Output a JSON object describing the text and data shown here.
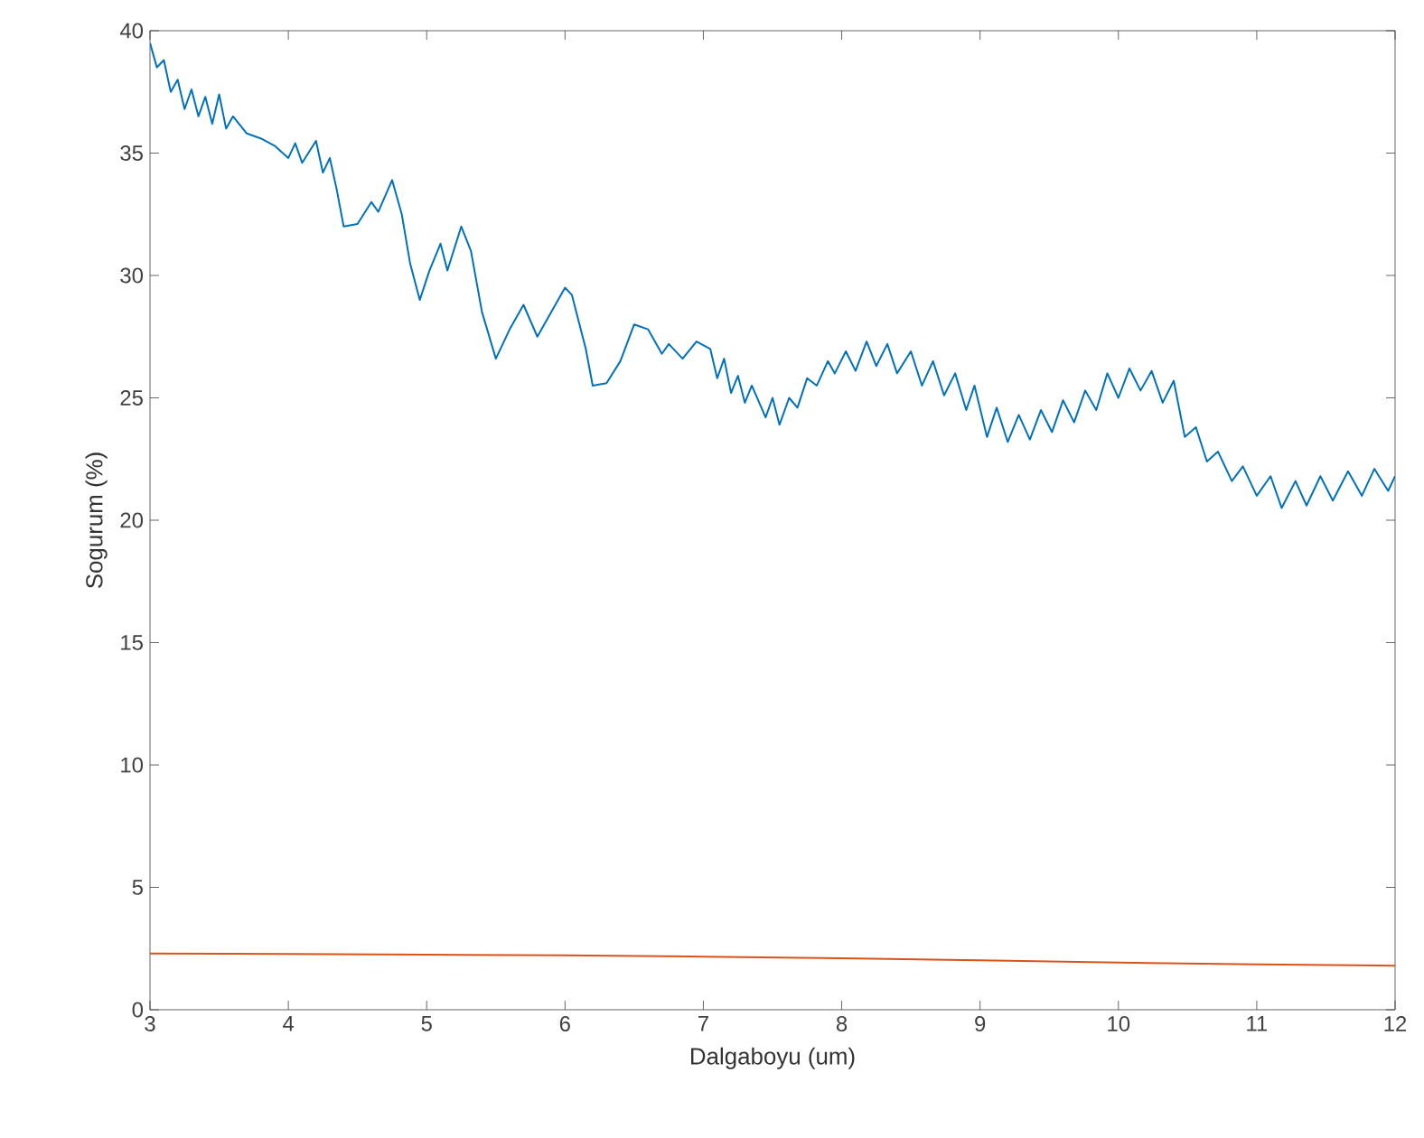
{
  "chart_data": {
    "type": "line",
    "xlabel": "Dalgaboyu (um)",
    "ylabel": "Sogurum (%)",
    "xlim": [
      3,
      12
    ],
    "ylim": [
      0,
      40
    ],
    "xticks": [
      3,
      4,
      5,
      6,
      7,
      8,
      9,
      10,
      11,
      12
    ],
    "yticks": [
      0,
      5,
      10,
      15,
      20,
      25,
      30,
      35,
      40
    ],
    "series": [
      {
        "color": "#0072bd",
        "x": [
          3.0,
          3.05,
          3.1,
          3.15,
          3.2,
          3.25,
          3.3,
          3.35,
          3.4,
          3.45,
          3.5,
          3.55,
          3.6,
          3.7,
          3.8,
          3.9,
          4.0,
          4.05,
          4.1,
          4.2,
          4.25,
          4.3,
          4.35,
          4.4,
          4.5,
          4.6,
          4.65,
          4.75,
          4.82,
          4.88,
          4.95,
          5.02,
          5.1,
          5.15,
          5.25,
          5.32,
          5.4,
          5.5,
          5.6,
          5.7,
          5.8,
          5.9,
          6.0,
          6.05,
          6.15,
          6.2,
          6.3,
          6.4,
          6.5,
          6.6,
          6.7,
          6.75,
          6.85,
          6.95,
          7.05,
          7.1,
          7.15,
          7.2,
          7.25,
          7.3,
          7.35,
          7.45,
          7.5,
          7.55,
          7.62,
          7.68,
          7.75,
          7.82,
          7.9,
          7.95,
          8.03,
          8.1,
          8.18,
          8.25,
          8.33,
          8.4,
          8.5,
          8.58,
          8.66,
          8.74,
          8.82,
          8.9,
          8.96,
          9.05,
          9.12,
          9.2,
          9.28,
          9.36,
          9.44,
          9.52,
          9.6,
          9.68,
          9.76,
          9.84,
          9.92,
          10.0,
          10.08,
          10.16,
          10.24,
          10.32,
          10.4,
          10.48,
          10.56,
          10.64,
          10.72,
          10.82,
          10.9,
          11.0,
          11.1,
          11.18,
          11.28,
          11.36,
          11.46,
          11.55,
          11.66,
          11.76,
          11.85,
          11.95,
          12.0
        ],
        "values": [
          39.5,
          38.5,
          38.8,
          37.5,
          38.0,
          36.8,
          37.6,
          36.5,
          37.3,
          36.2,
          37.4,
          36.0,
          36.5,
          35.8,
          35.6,
          35.3,
          34.8,
          35.4,
          34.6,
          35.5,
          34.2,
          34.8,
          33.5,
          32.0,
          32.1,
          33.0,
          32.6,
          33.9,
          32.5,
          30.5,
          29.0,
          30.2,
          31.3,
          30.2,
          32.0,
          31.0,
          28.5,
          26.6,
          27.8,
          28.8,
          27.5,
          28.5,
          29.5,
          29.2,
          27.0,
          25.5,
          25.6,
          26.5,
          28.0,
          27.8,
          26.8,
          27.2,
          26.6,
          27.3,
          27.0,
          25.8,
          26.6,
          25.2,
          25.9,
          24.8,
          25.5,
          24.2,
          25.0,
          23.9,
          25.0,
          24.6,
          25.8,
          25.5,
          26.5,
          26.0,
          26.9,
          26.1,
          27.3,
          26.3,
          27.2,
          26.0,
          26.9,
          25.5,
          26.5,
          25.1,
          26.0,
          24.5,
          25.5,
          23.4,
          24.6,
          23.2,
          24.3,
          23.3,
          24.5,
          23.6,
          24.9,
          24.0,
          25.3,
          24.5,
          26.0,
          25.0,
          26.2,
          25.3,
          26.1,
          24.8,
          25.7,
          23.4,
          23.8,
          22.4,
          22.8,
          21.6,
          22.2,
          21.0,
          21.8,
          20.5,
          21.6,
          20.6,
          21.8,
          20.8,
          22.0,
          21.0,
          22.1,
          21.2,
          21.8
        ]
      },
      {
        "color": "#d95319",
        "x": [
          3,
          4,
          5,
          6,
          7,
          8,
          9,
          10,
          11,
          12
        ],
        "values": [
          2.3,
          2.28,
          2.25,
          2.22,
          2.17,
          2.1,
          2.02,
          1.93,
          1.85,
          1.8
        ]
      }
    ]
  }
}
